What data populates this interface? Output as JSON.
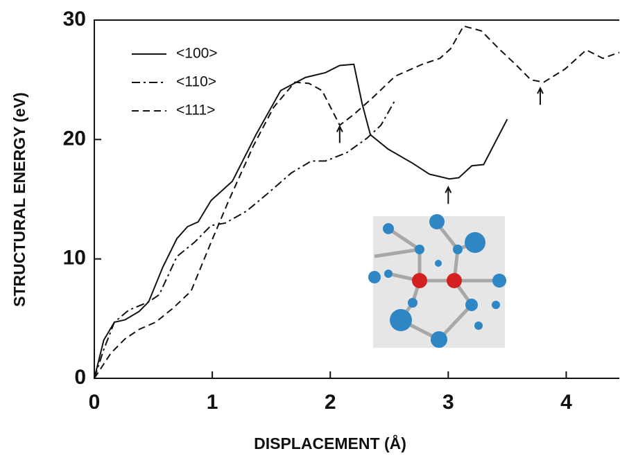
{
  "chart_data": {
    "type": "line",
    "xlabel": "DISPLACEMENT (Å)",
    "ylabel": "STRUCTURAL ENERGY (eV)",
    "xlim": [
      0,
      4.45
    ],
    "ylim": [
      0,
      30
    ],
    "xticks": [
      0,
      1,
      2,
      3,
      4
    ],
    "yticks": [
      0,
      10,
      20,
      30
    ],
    "legend": "upper left",
    "series": [
      {
        "name": "<100>",
        "color": "#111111",
        "style": "solid",
        "x": [
          0,
          0.08,
          0.17,
          0.26,
          0.38,
          0.46,
          0.58,
          0.7,
          0.79,
          0.88,
          0.99,
          1.17,
          1.37,
          1.58,
          1.79,
          1.96,
          2.08,
          2.2,
          2.27,
          2.34,
          2.49,
          2.7,
          2.84,
          3.01,
          3.09,
          3.2,
          3.3,
          3.5
        ],
        "values": [
          0,
          3.2,
          4.7,
          4.9,
          5.6,
          6.4,
          9.3,
          11.7,
          12.7,
          13.1,
          14.9,
          16.5,
          20.4,
          24.1,
          25.2,
          25.6,
          26.2,
          26.3,
          23.0,
          20.4,
          19.2,
          18.0,
          17.1,
          16.7,
          16.8,
          17.8,
          17.9,
          21.7
        ]
      },
      {
        "name": "<110>",
        "color": "#111111",
        "style": "dashdot",
        "x": [
          0,
          0.08,
          0.17,
          0.29,
          0.46,
          0.55,
          0.7,
          0.85,
          0.99,
          1.11,
          1.29,
          1.46,
          1.67,
          1.84,
          1.96,
          2.14,
          2.31,
          2.43,
          2.55
        ],
        "values": [
          0,
          2.4,
          4.7,
          5.7,
          6.4,
          7.0,
          10.2,
          11.4,
          12.8,
          13.0,
          14.0,
          15.4,
          17.2,
          18.2,
          18.2,
          18.9,
          20.1,
          21.2,
          23.3
        ]
      },
      {
        "name": "<111>",
        "color": "#111111",
        "style": "dashed",
        "x": [
          0,
          0.14,
          0.26,
          0.38,
          0.52,
          0.67,
          0.82,
          0.99,
          1.14,
          1.35,
          1.52,
          1.7,
          1.82,
          1.93,
          2.08,
          2.2,
          2.37,
          2.55,
          2.78,
          2.93,
          3.02,
          3.13,
          3.28,
          3.43,
          3.58,
          3.7,
          3.81,
          3.99,
          4.17,
          4.31,
          4.45
        ],
        "values": [
          0,
          2.1,
          3.3,
          4.1,
          4.7,
          5.9,
          7.3,
          11.4,
          14.9,
          19.5,
          22.7,
          24.8,
          24.7,
          24.1,
          21.2,
          22.1,
          23.6,
          25.3,
          26.3,
          26.8,
          27.6,
          29.5,
          29.1,
          27.6,
          26.2,
          25.0,
          24.8,
          25.9,
          27.5,
          26.8,
          27.3
        ]
      }
    ],
    "arrows": [
      {
        "x": 2.08,
        "y": 21.1
      },
      {
        "x": 3.0,
        "y": 16.0
      },
      {
        "x": 3.78,
        "y": 24.3
      }
    ]
  }
}
